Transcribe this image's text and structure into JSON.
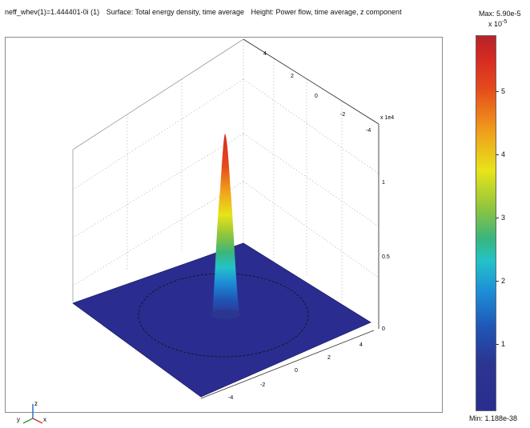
{
  "header": {
    "eigenvalue": "neff_whev(1)=1.444401-0i (1)",
    "surface": "Surface: Total energy density, time average",
    "height": "Height: Power flow, time average, z component"
  },
  "plot": {
    "z_multiplier": "x 1e4",
    "z_ticks": [
      "0",
      "0.5",
      "1"
    ],
    "x_ticks": [
      "-4",
      "-2",
      "0",
      "2",
      "4"
    ],
    "y_ticks": [
      "4",
      "2",
      "0",
      "-2",
      "-4"
    ],
    "triad": {
      "y": "y",
      "z": "z",
      "x": "x"
    }
  },
  "colorbar": {
    "max": "Max: 5.90e-5",
    "exponent": "x 10",
    "exponent_power": "-5",
    "min": "Min: 1.188e-38",
    "ticks": [
      "1",
      "2",
      "3",
      "4",
      "5"
    ],
    "colors": {
      "low": "#2a2d8f",
      "high": "#b52428"
    }
  }
}
